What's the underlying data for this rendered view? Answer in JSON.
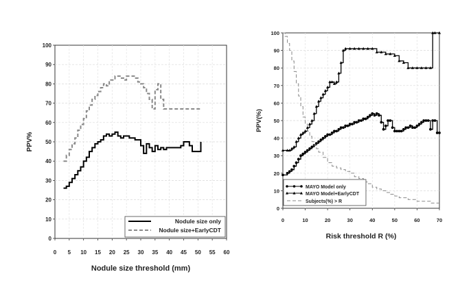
{
  "chart_data": [
    {
      "type": "line",
      "style": "step",
      "title": "",
      "xlabel": "Nodule size threshold (mm)",
      "ylabel": "PPV%",
      "xlim": [
        0,
        60
      ],
      "ylim": [
        0,
        100
      ],
      "xticks": [
        "0",
        "5",
        "10",
        "15",
        "20",
        "25",
        "30",
        "35",
        "40",
        "45",
        "50",
        "55",
        "60"
      ],
      "yticks": [
        "0",
        "10",
        "20",
        "30",
        "40",
        "50",
        "60",
        "70",
        "80",
        "90",
        "100"
      ],
      "grid": true,
      "legend_position": "bottom-right",
      "series": [
        {
          "name": "Nodule size only",
          "color": "#000000",
          "line": "solid",
          "x": [
            3,
            4,
            5,
            6,
            7,
            8,
            9,
            10,
            11,
            12,
            13,
            14,
            15,
            16,
            17,
            18,
            19,
            20,
            21,
            22,
            23,
            24,
            25,
            26,
            27,
            28,
            29,
            30,
            31,
            32,
            33,
            34,
            35,
            36,
            37,
            38,
            39,
            40,
            41,
            42,
            43,
            44,
            45,
            46,
            47,
            48,
            49,
            50,
            51
          ],
          "y": [
            26,
            27,
            29,
            31,
            33,
            35,
            37,
            40,
            42,
            45,
            47,
            49,
            50,
            51,
            53,
            54,
            53,
            54,
            55,
            53,
            52,
            53,
            53,
            52,
            52,
            51,
            51,
            48,
            44,
            49,
            47,
            45,
            48,
            46,
            47,
            46,
            47,
            47,
            47,
            47,
            47,
            48,
            50,
            50,
            48,
            45,
            45,
            45,
            50
          ]
        },
        {
          "name": "Nodule size+EarlyCDT",
          "color": "#888888",
          "line": "dashed",
          "x": [
            3,
            4,
            5,
            6,
            7,
            8,
            9,
            10,
            11,
            12,
            13,
            14,
            15,
            16,
            17,
            18,
            19,
            20,
            21,
            22,
            23,
            24,
            25,
            26,
            27,
            28,
            29,
            30,
            31,
            32,
            33,
            34,
            35,
            36,
            37,
            38,
            39,
            40,
            41,
            42,
            43,
            44,
            45,
            46,
            47,
            48,
            49,
            50,
            51
          ],
          "y": [
            40,
            43,
            46,
            49,
            52,
            56,
            59,
            62,
            66,
            69,
            72,
            74,
            76,
            78,
            80,
            79,
            82,
            82,
            84,
            84,
            83,
            82,
            84,
            84,
            84,
            83,
            81,
            80,
            78,
            75,
            72,
            67,
            77,
            80,
            72,
            67,
            67,
            67,
            67,
            67,
            67,
            67,
            67,
            67,
            67,
            67,
            67,
            67,
            67
          ]
        }
      ]
    },
    {
      "type": "line",
      "style": "step",
      "title": "",
      "xlabel": "Risk threshold R (%)",
      "ylabel": "PPV(%)",
      "xlim": [
        0,
        70
      ],
      "ylim": [
        0,
        100
      ],
      "xticks": [
        "0",
        "10",
        "20",
        "30",
        "40",
        "50",
        "60",
        "70"
      ],
      "yticks": [
        "0",
        "10",
        "20",
        "30",
        "40",
        "50",
        "60",
        "70",
        "80",
        "90",
        "100"
      ],
      "grid": true,
      "legend_position": "bottom-left",
      "series": [
        {
          "name": "MAYO Model only",
          "color": "#000000",
          "line": "solid",
          "marker": "circle",
          "x": [
            0,
            2,
            3,
            4,
            5,
            6,
            7,
            8,
            9,
            10,
            11,
            12,
            13,
            14,
            15,
            16,
            17,
            18,
            19,
            20,
            21,
            22,
            23,
            24,
            25,
            26,
            27,
            28,
            29,
            30,
            31,
            32,
            33,
            34,
            35,
            36,
            37,
            38,
            39,
            40,
            41,
            42,
            43,
            44,
            45,
            46,
            47,
            48,
            49,
            50,
            51,
            52,
            53,
            54,
            55,
            56,
            57,
            58,
            59,
            60,
            61,
            62,
            63,
            64,
            65,
            66,
            67,
            68,
            69,
            70
          ],
          "y": [
            19,
            20,
            21,
            22,
            24,
            26,
            28,
            30,
            31,
            32,
            33,
            34,
            35,
            36,
            37,
            38,
            39,
            40,
            41,
            42,
            42,
            43,
            44,
            44,
            45,
            46,
            46,
            47,
            47,
            48,
            48,
            49,
            49,
            50,
            50,
            51,
            51,
            52,
            53,
            54,
            53,
            54,
            53,
            49,
            45,
            47,
            50,
            50,
            46,
            44,
            44,
            44,
            44,
            45,
            46,
            46,
            47,
            46,
            46,
            47,
            48,
            49,
            50,
            50,
            50,
            45,
            50,
            50,
            43,
            43
          ]
        },
        {
          "name": "MAYO Model+EarlyCDT",
          "color": "#000000",
          "line": "solid",
          "marker": "triangle",
          "x": [
            0,
            2,
            3,
            4,
            5,
            6,
            7,
            8,
            9,
            10,
            11,
            12,
            13,
            14,
            15,
            16,
            17,
            18,
            19,
            20,
            21,
            22,
            23,
            24,
            25,
            26,
            27,
            28,
            30,
            32,
            34,
            36,
            38,
            40,
            42,
            44,
            46,
            48,
            50,
            52,
            54,
            56,
            58,
            60,
            62,
            64,
            66,
            67,
            68,
            70
          ],
          "y": [
            33,
            33,
            33,
            34,
            35,
            38,
            40,
            42,
            43,
            44,
            46,
            48,
            50,
            54,
            58,
            61,
            63,
            65,
            67,
            69,
            72,
            72,
            71,
            72,
            77,
            83,
            90,
            91,
            91,
            91,
            91,
            91,
            91,
            91,
            89,
            89,
            88,
            88,
            87,
            84,
            83,
            80,
            80,
            80,
            80,
            80,
            80,
            100,
            100,
            100
          ]
        },
        {
          "name": "Subjects(%) > R",
          "color": "#888888",
          "line": "dashed",
          "x": [
            0,
            1,
            2,
            3,
            4,
            5,
            6,
            7,
            8,
            9,
            10,
            11,
            12,
            13,
            14,
            15,
            16,
            18,
            20,
            22,
            24,
            26,
            28,
            30,
            32,
            34,
            36,
            38,
            40,
            42,
            44,
            46,
            48,
            50,
            52,
            54,
            56,
            58,
            60,
            62,
            64,
            66,
            68,
            70
          ],
          "y": [
            100,
            98,
            94,
            90,
            84,
            78,
            71,
            64,
            58,
            52,
            48,
            44,
            41,
            38,
            36,
            34,
            32,
            29,
            26,
            24,
            23,
            22,
            21,
            20,
            18,
            17,
            15,
            14,
            12,
            11,
            10,
            9,
            8,
            7,
            6,
            6,
            5,
            5,
            4,
            4,
            4,
            3,
            3,
            3
          ]
        }
      ]
    }
  ]
}
